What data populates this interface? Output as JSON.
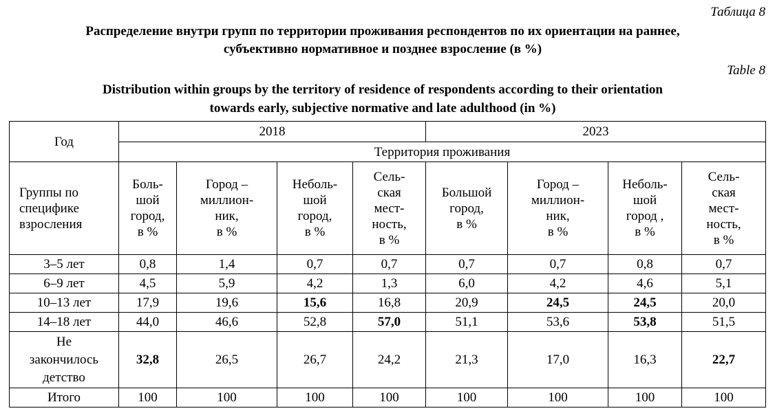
{
  "caption": {
    "table_label_ru": "Таблица 8",
    "title_ru_line1": "Распределение внутри групп по территории проживания респондентов по их ориентации на раннее,",
    "title_ru_line2": "субъективно нормативное и позднее взросление (в %)",
    "table_label_en": "Table 8",
    "title_en_line1": "Distribution within groups by the territory of residence of respondents according to their orientation",
    "title_en_line2": "towards early, subjective normative and late adulthood (in %)"
  },
  "header": {
    "year_label": "Год",
    "years": [
      "2018",
      "2023"
    ],
    "territory_label": "Территория проживания",
    "groups_label": "Группы по\nспецифике\nвзросления",
    "columns": [
      "Боль-\nшой\nгород,\nв %",
      "Город –\nмиллион-\nник,\nв %",
      "Неболь-\nшой\nгород,\nв %",
      "Сель-\nская\nмест-\nность,\nв %",
      "Большой\nгород,\nв %",
      "Город –\nмиллион-\nник,\nв %",
      "Неболь-\nшой\nгород ,\nв %",
      "Сель-\nская\nмест-\nность,\nв %"
    ]
  },
  "rows": [
    {
      "label": "3–5 лет",
      "values": [
        "0,8",
        "1,4",
        "0,7",
        "0,7",
        "0,7",
        "0,7",
        "0,8",
        "0,7"
      ],
      "bold": [
        0,
        0,
        0,
        0,
        0,
        0,
        0,
        0
      ]
    },
    {
      "label": "6–9 лет",
      "values": [
        "4,5",
        "5,9",
        "4,2",
        "1,3",
        "6,0",
        "4,2",
        "4,6",
        "5,1"
      ],
      "bold": [
        0,
        0,
        0,
        0,
        0,
        0,
        0,
        0
      ]
    },
    {
      "label": "10–13 лет",
      "values": [
        "17,9",
        "19,6",
        "15,6",
        "16,8",
        "20,9",
        "24,5",
        "24,5",
        "20,0"
      ],
      "bold": [
        0,
        0,
        1,
        0,
        0,
        1,
        1,
        0
      ]
    },
    {
      "label": "14–18 лет",
      "values": [
        "44,0",
        "46,6",
        "52,8",
        "57,0",
        "51,1",
        "53,6",
        "53,8",
        "51,5"
      ],
      "bold": [
        0,
        0,
        0,
        1,
        0,
        0,
        1,
        0
      ]
    },
    {
      "label": "Не\nзакончилось\nдетство",
      "values": [
        "32,8",
        "26,5",
        "26,7",
        "24,2",
        "21,3",
        "17,0",
        "16,3",
        "22,7"
      ],
      "bold": [
        1,
        0,
        0,
        0,
        0,
        0,
        0,
        1
      ]
    },
    {
      "label": "Итого",
      "values": [
        "100",
        "100",
        "100",
        "100",
        "100",
        "100",
        "100",
        "100"
      ],
      "bold": [
        0,
        0,
        0,
        0,
        0,
        0,
        0,
        0
      ]
    }
  ]
}
